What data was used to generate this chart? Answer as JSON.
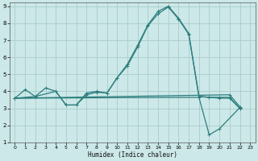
{
  "xlabel": "Humidex (Indice chaleur)",
  "bg_color": "#cce8e8",
  "grid_color": "#aacccc",
  "line_color": "#2d7d7d",
  "xlim": [
    -0.5,
    23.5
  ],
  "ylim": [
    1,
    9.2
  ],
  "xticks": [
    0,
    1,
    2,
    3,
    4,
    5,
    6,
    7,
    8,
    9,
    10,
    11,
    12,
    13,
    14,
    15,
    16,
    17,
    18,
    19,
    20,
    21,
    22,
    23
  ],
  "yticks": [
    1,
    2,
    3,
    4,
    5,
    6,
    7,
    8,
    9
  ],
  "series": [
    {
      "x": [
        0,
        1,
        2,
        3,
        4,
        5,
        6,
        7,
        8,
        9,
        10,
        11,
        12,
        13,
        14,
        15,
        16,
        17,
        18,
        19,
        20,
        21,
        22
      ],
      "y": [
        3.6,
        4.1,
        3.7,
        4.2,
        4.0,
        3.2,
        3.2,
        3.9,
        4.0,
        3.9,
        4.8,
        5.6,
        6.7,
        7.9,
        8.7,
        9.0,
        8.3,
        7.4,
        3.7,
        3.65,
        3.65,
        3.65,
        3.0
      ]
    },
    {
      "x": [
        0,
        2,
        4,
        5,
        6,
        7,
        8,
        9,
        10,
        11,
        12,
        13,
        14,
        15,
        16,
        17,
        18,
        19,
        20,
        21,
        22
      ],
      "y": [
        3.6,
        3.7,
        4.0,
        3.2,
        3.2,
        3.8,
        3.95,
        3.9,
        4.8,
        5.5,
        6.6,
        7.85,
        8.55,
        8.95,
        8.25,
        7.35,
        3.7,
        3.65,
        3.6,
        3.6,
        3.0
      ]
    },
    {
      "x": [
        0,
        21,
        22
      ],
      "y": [
        3.6,
        3.8,
        3.1
      ]
    },
    {
      "x": [
        0,
        18,
        19,
        20,
        22
      ],
      "y": [
        3.6,
        3.65,
        1.45,
        1.8,
        3.05
      ]
    }
  ]
}
